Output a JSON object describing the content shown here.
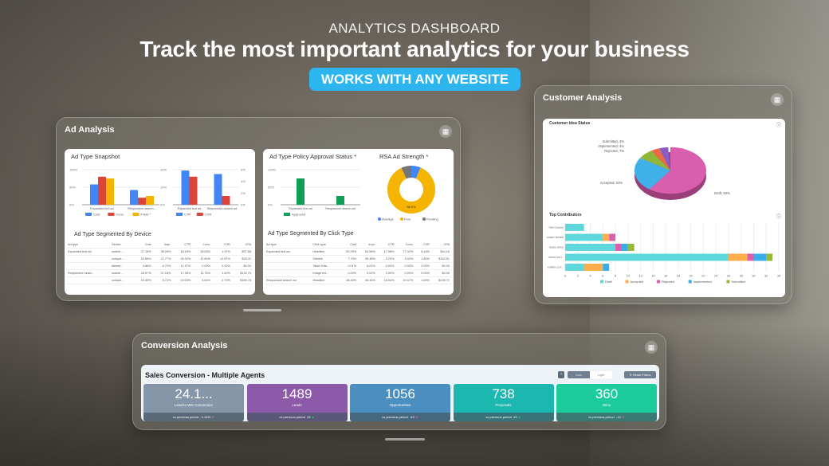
{
  "hero": {
    "eyebrow": "ANALYTICS DASHBOARD",
    "headline": "Track the most important analytics for your business",
    "badge": "WORKS WITH ANY WEBSITE",
    "badge_color": "#2cb5ef"
  },
  "ad_analysis": {
    "title": "Ad Analysis",
    "icon": "dashboard-icon",
    "snapshot": {
      "title": "Ad Type Snapshot",
      "chart1": {
        "type": "bar",
        "categories": [
          "Expanded text ad",
          "Responsive search..."
        ],
        "yticks": [
          "100%",
          "50%",
          "0%"
        ],
        "ylim": [
          0,
          100
        ],
        "series": [
          {
            "name": "Cost",
            "color": "#4285f4",
            "values": [
              58,
              42
            ]
          },
          {
            "name": "Conv.",
            "color": "#db4437",
            "values": [
              80,
              20
            ]
          },
          {
            "name": "# Ads *",
            "color": "#f4b400",
            "values": [
              75,
              25
            ]
          }
        ]
      },
      "chart2": {
        "type": "bar",
        "categories": [
          "Expanded text ad",
          "Responsive search ad"
        ],
        "yticks": [
          "20%",
          "10%",
          "0%"
        ],
        "yticks_right": [
          "6%",
          "4%",
          "2%",
          "0%"
        ],
        "ylim": [
          0,
          20
        ],
        "series": [
          {
            "name": "CTR",
            "color": "#4285f4",
            "values": [
              19.5,
              17.5
            ]
          },
          {
            "name": "CVR",
            "color": "#db4437",
            "values": [
              16,
              5
            ]
          }
        ]
      }
    },
    "policy": {
      "title": "Ad Type Policy Approval Status *",
      "type": "bar",
      "categories": [
        "Expanded text ad",
        "Responsive search ad"
      ],
      "yticks": [
        "100%",
        "50%",
        "0%"
      ],
      "ylim": [
        0,
        100
      ],
      "series": [
        {
          "name": "Approved",
          "color": "#0f9d58",
          "values": [
            75,
            25
          ]
        }
      ]
    },
    "rsa": {
      "title": "RSA Ad Strength *",
      "type": "pie",
      "center_label": "86.9%",
      "slices": [
        {
          "name": "Average",
          "color": "#4285f4",
          "value": 6.3
        },
        {
          "name": "Poor",
          "color": "#f4b400",
          "value": 86.9
        },
        {
          "name": "Pending",
          "color": "#757575",
          "value": 6.8
        }
      ]
    },
    "device_table": {
      "title": "Ad Type Segmented By Device",
      "headers": [
        "Ad type",
        "Device",
        "Cost",
        "Impr.",
        "CTR",
        "Conv.",
        "CVR",
        "CPA"
      ],
      "rows": [
        [
          "Expanded text ad",
          "mobile ...",
          "27.18%",
          "38.09%",
          "18.63%",
          "18.83%",
          "1.97%",
          "$97.66"
        ],
        [
          "",
          "comput...",
          "20.96%",
          "11.77%",
          "26.32%",
          "41.80%",
          "12.67%",
          "$28.41"
        ],
        [
          "",
          "tablets...",
          "4.86%",
          "6.70%",
          "11.97%",
          "0.00%",
          "0.00%",
          "$0.00"
        ],
        [
          "Responsive searc...",
          "mobile ...",
          "28.97%",
          "37.18%",
          "17.35%",
          "14.74%",
          "1.40%",
          "$132.70"
        ],
        [
          "",
          "comput...",
          "10.35%",
          "5.72%",
          "19.03%",
          "4.64%",
          "2.70%",
          "$150.78"
        ]
      ]
    },
    "click_table": {
      "title": "Ad Type Segmented By Click Type",
      "headers": [
        "Ad type",
        "Click type",
        "Cost",
        "Impr.",
        "CTR",
        "Conv.",
        "CVR",
        "CPA"
      ],
      "rows": [
        [
          "Expanded text ad",
          "Headline",
          "50.29%",
          "54.56%",
          "17.58%",
          "77.42%",
          "6.16%",
          "$44.16"
        ],
        [
          "",
          "Sitelink",
          "7.70%",
          "39.38%",
          "3.23%",
          "3.42%",
          "1.80%",
          "$164.51"
        ],
        [
          "",
          "Table Exte...",
          "0.01%",
          "6.01%",
          "0.04%",
          "0.00%",
          "0.00%",
          "$0.00"
        ],
        [
          "",
          "Image ext...",
          "0.00%",
          "0.02%",
          "0.00%",
          "0.00%",
          "0.00%",
          "$0.00"
        ],
        [
          "Responsive search ad",
          "Headline",
          "38.30%",
          "45.44%",
          "16.04%",
          "19.47%",
          "1.69%",
          "$135.71"
        ]
      ]
    }
  },
  "customer_analysis": {
    "title": "Customer Analysis",
    "icon": "dashboard-icon",
    "idea_status": {
      "title": "Customer Idea Status",
      "type": "pie",
      "slices": [
        {
          "name": "Draft",
          "value": 60,
          "label": "Draft, 60%",
          "color": "#d95fae"
        },
        {
          "name": "Accepted",
          "value": 24,
          "label": "Accepted, 24%",
          "color": "#3fb1e8"
        },
        {
          "name": "Rejected",
          "value": 7,
          "label": "Rejected, 7%",
          "color": "#8fb83a"
        },
        {
          "name": "Implemented",
          "value": 4,
          "label": "Implemented, 4%",
          "color": "#ec6a44"
        },
        {
          "name": "Submitted",
          "value": 4,
          "label": "Submitted, 4%",
          "color": "#8a5cc8"
        }
      ]
    },
    "contributors": {
      "title": "Top Contributors",
      "type": "bar",
      "orientation": "horizontal",
      "stacked": true,
      "xlim": [
        0,
        34
      ],
      "xticks": [
        0,
        2,
        4,
        6,
        8,
        10,
        12,
        14,
        16,
        18,
        20,
        22,
        24,
        26,
        28,
        30,
        32,
        34
      ],
      "categories": [
        "Ravi Chandra",
        "HARRY BAKER",
        "NADIA JEWS",
        "KEVIN SCH...",
        "KAREN CUR..."
      ],
      "series": [
        {
          "name": "Draft",
          "color": "#5ed8dc",
          "values": [
            3,
            6,
            8,
            26,
            3
          ]
        },
        {
          "name": "Accepted",
          "color": "#fbae4a",
          "values": [
            0,
            1,
            0,
            3,
            3
          ]
        },
        {
          "name": "Rejected",
          "color": "#dc5fab",
          "values": [
            0,
            1,
            1,
            1,
            0
          ]
        },
        {
          "name": "Implemented",
          "color": "#3aaee8",
          "values": [
            0,
            0,
            1,
            2,
            1
          ]
        },
        {
          "name": "Submitted",
          "color": "#98b83a",
          "values": [
            0,
            0,
            1,
            1,
            0
          ]
        }
      ]
    }
  },
  "conversion": {
    "title": "Conversion Analysis",
    "icon": "dashboard-icon",
    "subtitle": "Sales Conversion - Multiple Agents",
    "toggle": {
      "dark": "Dark",
      "light": "Light",
      "selected": "Light"
    },
    "reset": "Reset Filters",
    "info": "i",
    "kpis": [
      {
        "value": "24.1...",
        "label": "Lead to Win Conversion",
        "delta_label": "vs previous period",
        "delta": "-1.44%",
        "trend": "down",
        "color": "#8596a8"
      },
      {
        "value": "1489",
        "label": "Leads",
        "delta_label": "vs previous period",
        "delta": "29",
        "trend": "up",
        "color": "#8c5aa8"
      },
      {
        "value": "1056",
        "label": "Opportunities",
        "delta_label": "vs previous period",
        "delta": "-43",
        "trend": "down",
        "color": "#4a8fc0"
      },
      {
        "value": "738",
        "label": "Proposals",
        "delta_label": "vs previous period",
        "delta": "43",
        "trend": "up",
        "color": "#1cb8b0"
      },
      {
        "value": "360",
        "label": "Wins",
        "delta_label": "vs previous period",
        "delta": "-14",
        "trend": "down",
        "color": "#1ccc9c"
      }
    ]
  }
}
